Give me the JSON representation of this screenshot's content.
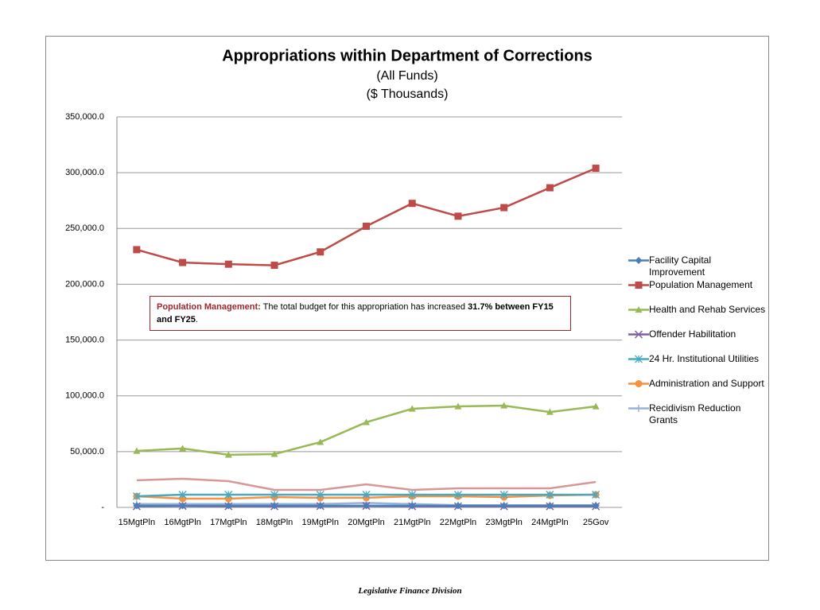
{
  "chart_data": {
    "type": "line",
    "title": "Appropriations within Department of Corrections",
    "subtitle": [
      "(All Funds)",
      "($ Thousands)"
    ],
    "categories": [
      "15MgtPln",
      "16MgtPln",
      "17MgtPln",
      "18MgtPln",
      "19MgtPln",
      "20MgtPln",
      "21MgtPln",
      "22MgtPln",
      "23MgtPln",
      "24MgtPln",
      "25Gov"
    ],
    "ylim": [
      0,
      350000
    ],
    "yticks": [
      {
        "value": 0,
        "label": "-"
      },
      {
        "value": 50000,
        "label": "50,000.0"
      },
      {
        "value": 100000,
        "label": "100,000.0"
      },
      {
        "value": 150000,
        "label": "150,000.0"
      },
      {
        "value": 200000,
        "label": "200,000.0"
      },
      {
        "value": 250000,
        "label": "250,000.0"
      },
      {
        "value": 300000,
        "label": "300,000.0"
      },
      {
        "value": 350000,
        "label": "350,000.0"
      }
    ],
    "grid": true,
    "legend": "right",
    "series": [
      {
        "name": "Facility Capital Improvement",
        "color": "#4a7ebb",
        "marker": "diamond",
        "values": [
          1500,
          1500,
          1500,
          1500,
          1500,
          1500,
          1500,
          1500,
          1500,
          1500,
          1500
        ]
      },
      {
        "name": "Population Management",
        "color": "#be4b48",
        "marker": "square",
        "values": [
          231000,
          219500,
          218000,
          217000,
          229000,
          252000,
          272500,
          261000,
          268700,
          286500,
          304000
        ]
      },
      {
        "name": "Health and Rehab Services",
        "color": "#98b954",
        "marker": "triangle",
        "values": [
          50600,
          52800,
          47100,
          47800,
          58500,
          76300,
          88400,
          90500,
          91200,
          85500,
          90500
        ]
      },
      {
        "name": "Offender Habilitation",
        "color": "#7d60a0",
        "marker": "x",
        "values": [
          1000,
          1300,
          1000,
          1000,
          1200,
          1300,
          1000,
          1000,
          1000,
          1000,
          1000
        ]
      },
      {
        "name": "24 Hr. Institutional Utilities",
        "color": "#46aac5",
        "marker": "star",
        "values": [
          10000,
          11400,
          11400,
          11400,
          11400,
          11400,
          11400,
          11400,
          11400,
          11400,
          11400
        ]
      },
      {
        "name": "Administration and Support",
        "color": "#f69240",
        "marker": "circle",
        "values": [
          10000,
          7800,
          7800,
          9300,
          8600,
          8600,
          10000,
          10000,
          9300,
          10700,
          11400
        ]
      },
      {
        "name": "Recidivism Reduction Grants",
        "color": "#95b3d7",
        "marker": "plus",
        "values": [
          3000,
          3000,
          3000,
          3000,
          3000,
          4000,
          3000,
          2000,
          2000,
          2000,
          2000
        ]
      },
      {
        "color": "#d99694",
        "marker": "none",
        "values": [
          24300,
          25700,
          23500,
          15700,
          15700,
          20700,
          15700,
          17100,
          17100,
          17100,
          22800
        ]
      }
    ],
    "annotation": [
      "Population Management:",
      " The total budget for this appropriation has increased ",
      "31.7%",
      " between FY15 and FY25",
      "."
    ]
  },
  "footer": "Legislative Finance Division"
}
